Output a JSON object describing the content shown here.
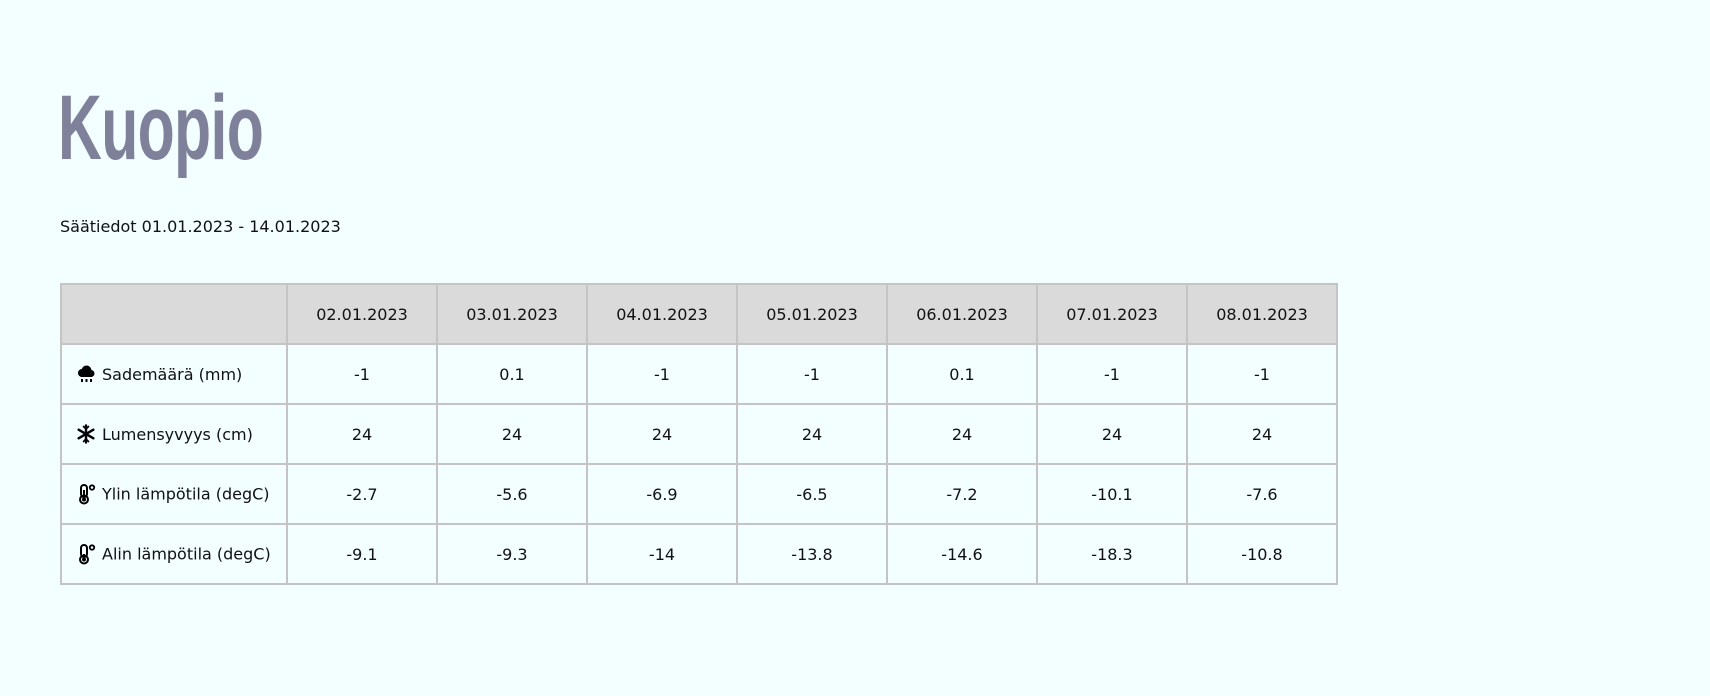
{
  "page": {
    "title": "Kuopio",
    "subtitle": "Säätiedot 01.01.2023 - 14.01.2023"
  },
  "table": {
    "dates": [
      "02.01.2023",
      "03.01.2023",
      "04.01.2023",
      "05.01.2023",
      "06.01.2023",
      "07.01.2023",
      "08.01.2023"
    ],
    "rows": [
      {
        "icon": "rain-cloud-icon",
        "label": "Sademäärä (mm)",
        "values": [
          "-1",
          "0.1",
          "-1",
          "-1",
          "0.1",
          "-1",
          "-1"
        ]
      },
      {
        "icon": "snowflake-icon",
        "label": "Lumensyvyys (cm)",
        "values": [
          "24",
          "24",
          "24",
          "24",
          "24",
          "24",
          "24"
        ]
      },
      {
        "icon": "thermometer-icon",
        "label": "Ylin lämpötila (degC)",
        "values": [
          "-2.7",
          "-5.6",
          "-6.9",
          "-6.5",
          "-7.2",
          "-10.1",
          "-7.6"
        ]
      },
      {
        "icon": "thermometer-icon",
        "label": "Alin lämpötila (degC)",
        "values": [
          "-9.1",
          "-9.3",
          "-14",
          "-13.8",
          "-14.6",
          "-18.3",
          "-10.8"
        ]
      }
    ]
  },
  "colors": {
    "background": "#f2feff",
    "title": "#7f8099",
    "header_bg": "#dadada",
    "border": "#c4c4c4"
  }
}
